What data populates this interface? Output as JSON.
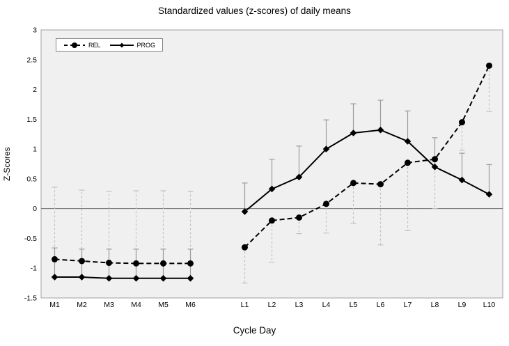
{
  "chart_data": {
    "type": "line",
    "title": "Standardized values (z-scores) of daily means",
    "xlabel": "Cycle Day",
    "ylabel": "Z-Scores",
    "ylim": [
      -1.5,
      3
    ],
    "y_ticks": [
      "3",
      "2.5",
      "2",
      "1.5",
      "1",
      "0.5",
      "0",
      "-0.5",
      "-1",
      "-1.5"
    ],
    "y_tick_values": [
      3,
      2.5,
      2,
      1.5,
      1,
      0.5,
      0,
      -0.5,
      -1,
      -1.5
    ],
    "categories": [
      "M1",
      "M2",
      "M3",
      "M4",
      "M5",
      "M6",
      "L1",
      "L2",
      "L3",
      "L4",
      "L5",
      "L6",
      "L7",
      "L8",
      "L9",
      "L10"
    ],
    "category_slots": [
      0,
      1,
      2,
      3,
      4,
      5,
      7,
      8,
      9,
      10,
      11,
      12,
      13,
      14,
      15,
      16
    ],
    "total_slots": 17,
    "grid": "zero-line-only",
    "legend_position": "top-left-inside",
    "series": [
      {
        "name": "REL",
        "line_style": "dashed",
        "marker": "circle",
        "values": [
          -0.85,
          -0.88,
          -0.91,
          -0.92,
          -0.92,
          -0.92,
          -0.65,
          -0.2,
          -0.15,
          0.08,
          0.43,
          0.41,
          0.77,
          0.83,
          1.45,
          2.4
        ],
        "error_to": [
          0.36,
          0.31,
          0.29,
          0.3,
          0.3,
          0.29,
          -1.25,
          -0.9,
          -0.42,
          -0.41,
          -0.25,
          -0.61,
          -0.37,
          0.0,
          0.98,
          1.63
        ],
        "error_style": "dashed"
      },
      {
        "name": "PROG",
        "line_style": "solid",
        "marker": "diamond",
        "values": [
          -1.15,
          -1.15,
          -1.17,
          -1.17,
          -1.17,
          -1.17,
          -0.05,
          0.33,
          0.53,
          1.0,
          1.27,
          1.32,
          1.13,
          0.7,
          0.48,
          0.24
        ],
        "error_to": [
          -0.66,
          -0.68,
          -0.68,
          -0.68,
          -0.68,
          -0.68,
          0.43,
          0.83,
          1.05,
          1.49,
          1.76,
          1.82,
          1.64,
          1.19,
          0.93,
          0.74
        ],
        "error_style": "solid"
      }
    ],
    "colors": {
      "series_line": "#000000",
      "marker_fill": "#000000",
      "plot_background": "#f0f0f0",
      "plot_border": "#a0a0a0",
      "zero_line": "#707070",
      "error_dashed": "#c0c0c0",
      "error_solid": "#9a9a9a"
    }
  }
}
